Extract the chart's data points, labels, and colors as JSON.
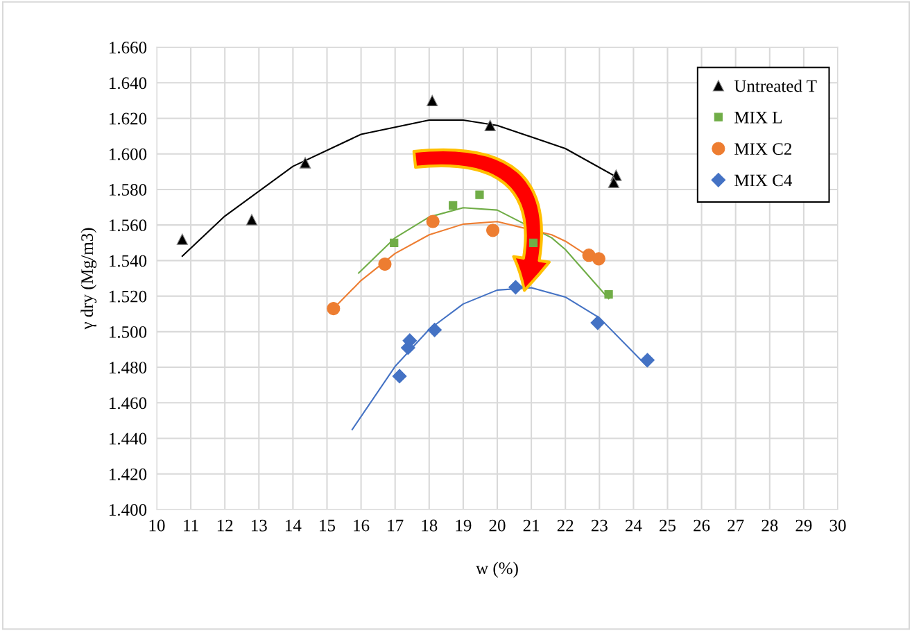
{
  "chart_data": {
    "type": "scatter",
    "xlabel": "w (%)",
    "ylabel": "γ dry (Mg/m3)",
    "xlim": [
      10,
      30
    ],
    "xticks": [
      10,
      11,
      12,
      13,
      14,
      15,
      16,
      17,
      18,
      19,
      20,
      21,
      22,
      23,
      24,
      25,
      26,
      27,
      28,
      29,
      30
    ],
    "ylim": [
      1.4,
      1.66
    ],
    "yticks": [
      {
        "value": 1.4,
        "label": "1.400"
      },
      {
        "value": 1.42,
        "label": "1.420"
      },
      {
        "value": 1.44,
        "label": "1.440"
      },
      {
        "value": 1.46,
        "label": "1.460"
      },
      {
        "value": 1.48,
        "label": "1.480"
      },
      {
        "value": 1.5,
        "label": "1.500"
      },
      {
        "value": 1.52,
        "label": "1.520"
      },
      {
        "value": 1.54,
        "label": "1.540"
      },
      {
        "value": 1.56,
        "label": "1.560"
      },
      {
        "value": 1.58,
        "label": "1.580"
      },
      {
        "value": 1.6,
        "label": "1.600"
      },
      {
        "value": 1.62,
        "label": "1.620"
      },
      {
        "value": 1.64,
        "label": "1.640"
      },
      {
        "value": 1.66,
        "label": "1.660"
      }
    ],
    "grid": true,
    "legend": "top right",
    "series": [
      {
        "name": "Untreated T",
        "marker": "triangle",
        "color": "#000000",
        "x": [
          10.75,
          12.79,
          14.36,
          18.09,
          19.79,
          23.49,
          23.42
        ],
        "values": [
          1.552,
          1.563,
          1.595,
          1.63,
          1.616,
          1.588,
          1.584
        ]
      },
      {
        "name": "MIX L",
        "marker": "square",
        "color": "#70ad47",
        "x": [
          16.97,
          18.7,
          19.48,
          21.06,
          23.27
        ],
        "values": [
          1.55,
          1.571,
          1.577,
          1.55,
          1.521
        ]
      },
      {
        "name": "MIX C2",
        "marker": "circle",
        "color": "#ed7d31",
        "x": [
          15.19,
          16.7,
          18.11,
          19.87,
          22.69,
          22.98
        ],
        "values": [
          1.513,
          1.538,
          1.562,
          1.557,
          1.543,
          1.541
        ]
      },
      {
        "name": "MIX C4",
        "marker": "diamond",
        "color": "#4472c4",
        "x": [
          17.13,
          17.38,
          17.43,
          18.16,
          20.54,
          22.95,
          24.41
        ],
        "values": [
          1.475,
          1.491,
          1.495,
          1.501,
          1.525,
          1.505,
          1.484
        ]
      },
      {
        "type": "line",
        "marker": "none",
        "color": "#000000",
        "x": [
          10.75,
          12,
          14,
          16,
          18,
          19,
          20,
          22,
          23.5
        ],
        "values": [
          1.5425,
          1.565,
          1.593,
          1.611,
          1.619,
          1.619,
          1.616,
          1.603,
          1.587
        ]
      },
      {
        "type": "line",
        "marker": "none",
        "color": "#70ad47",
        "x": [
          15.93,
          17,
          18,
          19,
          20,
          21.6,
          22,
          23.27
        ],
        "values": [
          1.533,
          1.5528,
          1.5645,
          1.5697,
          1.5684,
          1.5528,
          1.5462,
          1.5186
        ]
      },
      {
        "type": "line",
        "marker": "none",
        "color": "#ed7d31",
        "x": [
          15.19,
          16,
          17,
          18,
          19,
          20,
          21.6,
          22,
          23
        ],
        "values": [
          1.513,
          1.5288,
          1.544,
          1.5545,
          1.5605,
          1.5619,
          1.5545,
          1.5509,
          1.5385
        ]
      },
      {
        "type": "line",
        "marker": "none",
        "color": "#4472c4",
        "x": [
          15.74,
          17,
          18,
          19,
          20,
          21,
          22,
          23,
          24.4
        ],
        "values": [
          1.445,
          1.4805,
          1.5013,
          1.5156,
          1.5234,
          1.5247,
          1.5195,
          1.5078,
          1.4805
        ]
      }
    ]
  }
}
